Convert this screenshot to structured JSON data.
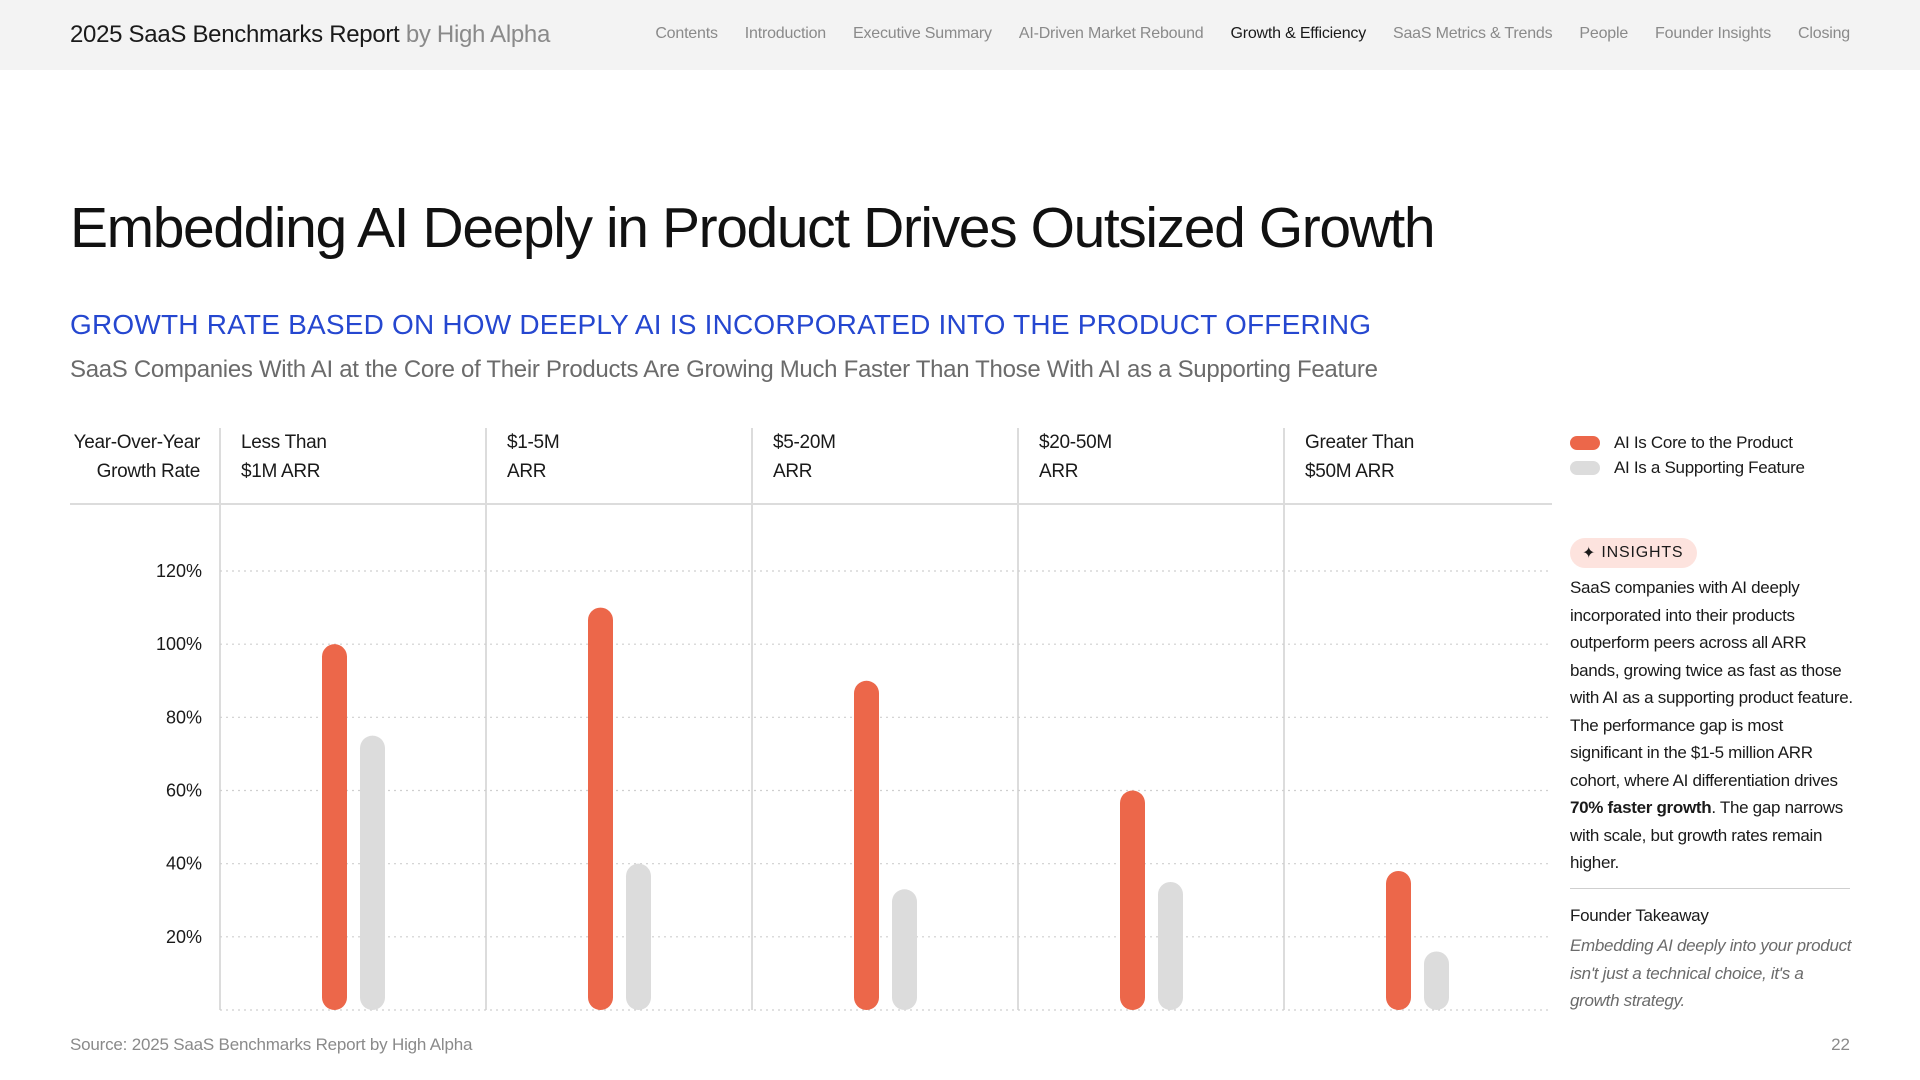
{
  "header": {
    "brand_main": "2025 SaaS Benchmarks Report",
    "brand_by": "by High Alpha",
    "nav": [
      {
        "label": "Contents",
        "active": false
      },
      {
        "label": "Introduction",
        "active": false
      },
      {
        "label": "Executive Summary",
        "active": false
      },
      {
        "label": "AI-Driven Market Rebound",
        "active": false
      },
      {
        "label": "Growth & Efficiency",
        "active": true
      },
      {
        "label": "SaaS Metrics & Trends",
        "active": false
      },
      {
        "label": "People",
        "active": false
      },
      {
        "label": "Founder Insights",
        "active": false
      },
      {
        "label": "Closing",
        "active": false
      }
    ]
  },
  "page": {
    "title": "Embedding AI Deeply in Product Drives Outsized Growth",
    "subtitle": "GROWTH RATE BASED ON HOW DEEPLY AI IS INCORPORATED INTO THE PRODUCT OFFERING",
    "caption": "SaaS Companies With AI at the Core of Their Products Are Growing Much Faster Than Those With AI as a Supporting Feature"
  },
  "chart_data": {
    "type": "bar",
    "title": "Growth rate based on how deeply AI is incorporated into the product offering",
    "ylabel": "Year-Over-Year\nGrowth Rate",
    "categories": [
      "Less Than\n$1M ARR",
      "$1-5M\nARR",
      "$5-20M\nARR",
      "$20-50M\nARR",
      "Greater Than\n$50M ARR"
    ],
    "series": [
      {
        "name": "AI Is Core to the Product",
        "color": "#ec674a",
        "values": [
          100,
          110,
          90,
          60,
          38
        ]
      },
      {
        "name": "AI Is a Supporting Feature",
        "color": "#dcdcdc",
        "values": [
          75,
          40,
          33,
          35,
          16
        ]
      }
    ],
    "yticks": [
      20,
      40,
      60,
      80,
      100,
      120
    ],
    "tick_suffix": "%",
    "ylim": [
      0,
      120
    ],
    "grid": true,
    "legend_position": "top-right"
  },
  "insights": {
    "badge_icon": "✦",
    "badge_label": "INSIGHTS",
    "text_before": "SaaS companies with AI deeply incorporated into their products outperform peers across all ARR bands, growing twice as fast as those with AI as a supporting product feature. The performance gap is most significant in the $1-5 million ARR cohort, where AI differentiation drives ",
    "text_bold": "70% faster growth",
    "text_after": ". The gap narrows with scale, but growth rates remain higher.",
    "takeaway_title": "Founder Takeaway",
    "takeaway_text": "Embedding AI deeply into your product isn't just a technical choice, it's a growth strategy."
  },
  "footer": {
    "source": "Source: 2025 SaaS Benchmarks Report by High Alpha",
    "page_number": "22"
  }
}
